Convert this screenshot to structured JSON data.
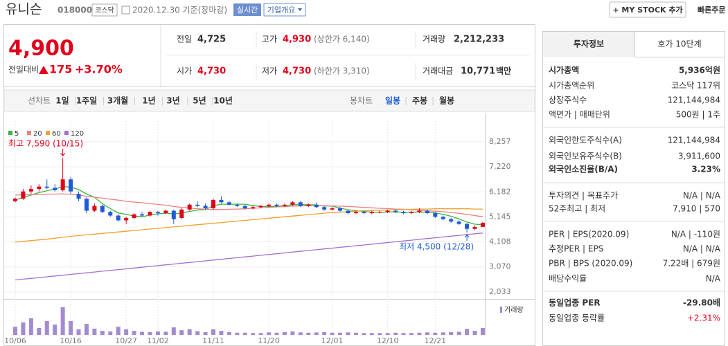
{
  "header": {
    "name": "유니슨",
    "code": "018000",
    "market": "코스닥",
    "date": "2020.12.30 기준(장마감)",
    "realtime": "실시간",
    "company": "기업개요",
    "mystock": "+ MY STOCK 추가",
    "quick_order": "빠른주문"
  },
  "price": {
    "current": "4,900",
    "change_label": "전일대비",
    "change": "175",
    "change_pct": "+3.70%"
  },
  "quote": [
    {
      "label": "전일",
      "value": "4,725"
    },
    {
      "label": "고가",
      "value": "4,930",
      "note": "(상한가 6,140)"
    },
    {
      "label": "거래량",
      "value": "2,212,233"
    },
    {
      "label": "시가",
      "value": "4,730"
    },
    {
      "label": "저가",
      "value": "4,730",
      "note": "(하한가 3,310)"
    },
    {
      "label": "거래대금",
      "value": "10,771",
      "unit": "백만"
    }
  ],
  "periods": {
    "line_label": "선차트",
    "line": [
      "1일",
      "1주일",
      "3개월",
      "1년",
      "3년",
      "5년",
      "10년"
    ],
    "candle_label": "봉차트",
    "candle": [
      "일봉",
      "주봉",
      "월봉"
    ]
  },
  "chart_data": {
    "type": "candlestick",
    "categories": [
      "10/06",
      null,
      null,
      null,
      null,
      null,
      null,
      "10/16",
      null,
      null,
      null,
      null,
      null,
      null,
      "10/27",
      null,
      null,
      null,
      "11/02",
      null,
      null,
      null,
      null,
      null,
      null,
      "11/11",
      null,
      null,
      null,
      null,
      null,
      null,
      "11/20",
      null,
      null,
      null,
      null,
      null,
      null,
      null,
      "12/01",
      null,
      null,
      null,
      null,
      null,
      null,
      "12/10",
      null,
      null,
      null,
      null,
      null,
      "12/21",
      null,
      null,
      null,
      null,
      null,
      null
    ],
    "ohlc": [
      [
        5800,
        5950,
        5750,
        5900
      ],
      [
        5900,
        6300,
        5850,
        6200
      ],
      [
        6200,
        6450,
        6100,
        6300
      ],
      [
        6300,
        6500,
        6200,
        6400
      ],
      [
        6400,
        6700,
        6300,
        6350
      ],
      [
        6350,
        6500,
        6200,
        6250
      ],
      [
        6250,
        7590,
        6200,
        6700
      ],
      [
        6700,
        6800,
        6100,
        6200
      ],
      [
        6100,
        6200,
        5800,
        5900
      ],
      [
        5900,
        5950,
        5300,
        5400
      ],
      [
        5400,
        5700,
        5350,
        5600
      ],
      [
        5600,
        5650,
        5300,
        5350
      ],
      [
        5350,
        5400,
        5150,
        5200
      ],
      [
        5200,
        5250,
        4950,
        5000
      ],
      [
        5000,
        5150,
        4850,
        5100
      ],
      [
        5100,
        5300,
        5050,
        5250
      ],
      [
        5250,
        5350,
        5150,
        5200
      ],
      [
        5200,
        5400,
        5150,
        5350
      ],
      [
        5350,
        5400,
        5200,
        5300
      ],
      [
        5300,
        5450,
        5250,
        5400
      ],
      [
        5400,
        5450,
        4850,
        5050
      ],
      [
        5100,
        5500,
        5050,
        5450
      ],
      [
        5450,
        5700,
        5400,
        5650
      ],
      [
        5650,
        5800,
        5550,
        5600
      ],
      [
        5600,
        5700,
        5450,
        5500
      ],
      [
        5500,
        5900,
        5450,
        5850
      ],
      [
        5850,
        6000,
        5700,
        5750
      ],
      [
        5750,
        5800,
        5600,
        5650
      ],
      [
        5650,
        5700,
        5550,
        5600
      ],
      [
        5600,
        5650,
        5450,
        5500
      ],
      [
        5500,
        5600,
        5450,
        5550
      ],
      [
        5550,
        5650,
        5500,
        5600
      ],
      [
        5600,
        5700,
        5550,
        5650
      ],
      [
        5650,
        5700,
        5550,
        5600
      ],
      [
        5600,
        5700,
        5550,
        5650
      ],
      [
        5650,
        5800,
        5600,
        5750
      ],
      [
        5750,
        5800,
        5550,
        5600
      ],
      [
        5600,
        5700,
        5550,
        5650
      ],
      [
        5650,
        5750,
        5500,
        5550
      ],
      [
        5550,
        5600,
        5400,
        5450
      ],
      [
        5450,
        5550,
        5400,
        5500
      ],
      [
        5500,
        5550,
        5350,
        5400
      ],
      [
        5400,
        5450,
        5250,
        5300
      ],
      [
        5300,
        5400,
        5250,
        5350
      ],
      [
        5350,
        5400,
        5250,
        5300
      ],
      [
        5300,
        5400,
        5250,
        5350
      ],
      [
        5350,
        5400,
        5300,
        5350
      ],
      [
        5350,
        5450,
        5300,
        5400
      ],
      [
        5400,
        5450,
        5300,
        5350
      ],
      [
        5350,
        5400,
        5250,
        5300
      ],
      [
        5300,
        5400,
        5250,
        5350
      ],
      [
        5350,
        5500,
        5300,
        5400
      ],
      [
        5400,
        5450,
        5250,
        5300
      ],
      [
        5300,
        5350,
        5100,
        5150
      ],
      [
        5150,
        5200,
        5000,
        5050
      ],
      [
        5050,
        5100,
        4900,
        4950
      ],
      [
        4950,
        5000,
        4800,
        4850
      ],
      [
        4850,
        4900,
        4500,
        4650
      ],
      [
        4650,
        4800,
        4600,
        4725
      ],
      [
        4730,
        4930,
        4730,
        4900
      ]
    ],
    "up_color": "#e0001b",
    "down_color": "#1e5bd5",
    "series": [
      {
        "name": "5",
        "color": "#3cb43c",
        "values": [
          5850,
          5950,
          6050,
          6150,
          6230,
          6300,
          6400,
          6380,
          6280,
          6090,
          5960,
          5690,
          5490,
          5310,
          5250,
          5180,
          5150,
          5220,
          5270,
          5300,
          5260,
          5310,
          5370,
          5430,
          5450,
          5610,
          5670,
          5670,
          5670,
          5670,
          5610,
          5580,
          5580,
          5580,
          5610,
          5650,
          5650,
          5650,
          5640,
          5600,
          5590,
          5510,
          5440,
          5400,
          5370,
          5340,
          5330,
          5350,
          5350,
          5340,
          5340,
          5350,
          5340,
          5310,
          5250,
          5170,
          5060,
          4930,
          4840,
          4820
        ]
      },
      {
        "name": "20",
        "color": "#ec7f7f",
        "values": [
          6050,
          6060,
          6070,
          6080,
          6090,
          6090,
          6100,
          6080,
          6050,
          6000,
          5960,
          5920,
          5880,
          5840,
          5790,
          5760,
          5730,
          5700,
          5660,
          5630,
          5580,
          5540,
          5510,
          5480,
          5460,
          5450,
          5450,
          5460,
          5470,
          5480,
          5500,
          5520,
          5540,
          5560,
          5570,
          5590,
          5600,
          5610,
          5620,
          5610,
          5600,
          5590,
          5580,
          5560,
          5540,
          5520,
          5500,
          5490,
          5470,
          5460,
          5440,
          5420,
          5400,
          5380,
          5360,
          5330,
          5290,
          5250,
          5200,
          5150
        ]
      },
      {
        "name": "60",
        "color": "#f0a030",
        "values": [
          4100,
          4130,
          4160,
          4190,
          4220,
          4260,
          4300,
          4340,
          4370,
          4400,
          4430,
          4460,
          4490,
          4520,
          4550,
          4580,
          4610,
          4640,
          4670,
          4700,
          4730,
          4760,
          4790,
          4820,
          4850,
          4880,
          4910,
          4940,
          4970,
          5000,
          5030,
          5060,
          5090,
          5120,
          5150,
          5180,
          5210,
          5240,
          5270,
          5300,
          5320,
          5340,
          5360,
          5380,
          5400,
          5410,
          5420,
          5430,
          5440,
          5450,
          5460,
          5470,
          5470,
          5480,
          5480,
          5480,
          5480,
          5480,
          5470,
          5470
        ]
      },
      {
        "name": "120",
        "color": "#a070d0",
        "values": [
          2530,
          2563,
          2596,
          2629,
          2662,
          2695,
          2728,
          2761,
          2794,
          2827,
          2860,
          2893,
          2926,
          2959,
          2992,
          3025,
          3058,
          3091,
          3124,
          3157,
          3190,
          3223,
          3256,
          3289,
          3322,
          3355,
          3388,
          3421,
          3454,
          3487,
          3520,
          3553,
          3586,
          3619,
          3652,
          3685,
          3718,
          3751,
          3784,
          3817,
          3850,
          3883,
          3916,
          3949,
          3982,
          4015,
          4048,
          4081,
          4114,
          4147,
          4180,
          4213,
          4246,
          4279,
          4312,
          4345,
          4378,
          4411,
          4444,
          4477
        ]
      }
    ],
    "ylim": [
      1800,
      8973
    ],
    "yticks": [
      {
        "value": 8257,
        "label": "8,257"
      },
      {
        "value": 7220,
        "label": "7,220"
      },
      {
        "value": 6182,
        "label": "6,182"
      },
      {
        "value": 5145,
        "label": "5,145"
      },
      {
        "value": 4108,
        "label": "4,108"
      },
      {
        "value": 3070,
        "label": "3,070"
      },
      {
        "value": 2033,
        "label": "2,033"
      }
    ],
    "grid": true,
    "annotations": {
      "high": "최고 7,590 (10/15)",
      "low": "최저 4,500 (12/28)"
    },
    "volume": {
      "label": "거래량",
      "color": "#a38bd0",
      "values": [
        2600000,
        4000000,
        5300000,
        2200000,
        4400000,
        3300000,
        8800000,
        4400000,
        1800000,
        3500000,
        2000000,
        1300000,
        1100000,
        2600000,
        1800000,
        1300000,
        1000000,
        900000,
        1100000,
        1000000,
        2400000,
        1500000,
        1800000,
        1200000,
        900000,
        1800000,
        1300000,
        900000,
        700000,
        700000,
        600000,
        600000,
        800000,
        700000,
        900000,
        1100000,
        800000,
        700000,
        800000,
        900000,
        700000,
        700000,
        800000,
        700000,
        600000,
        600000,
        600000,
        600000,
        700000,
        600000,
        600000,
        700000,
        800000,
        700000,
        800000,
        900000,
        1000000,
        1900000,
        1300000,
        2212233
      ]
    }
  },
  "info": {
    "tabs": [
      "투자정보",
      "호가 10단계"
    ],
    "rows": [
      {
        "label": "시가총액",
        "value": "5,936억원"
      },
      {
        "label": "시가총액순위",
        "value": "코스닥 117위"
      },
      {
        "label": "상장주식수",
        "value": "121,144,984"
      },
      {
        "label": "액면가 | 매매단위",
        "value": "500원 | 1주"
      },
      {
        "label": "외국인한도주식수(A)",
        "value": "121,144,984"
      },
      {
        "label": "외국인보유주식수(B)",
        "value": "3,911,600"
      },
      {
        "label": "외국인소진율(B/A)",
        "value": "3.23%"
      },
      {
        "label": "투자의견 | 목표주가",
        "value": "N/A | N/A"
      },
      {
        "label": "52주최고 | 최저",
        "value": "7,910 | 570"
      },
      {
        "label": "PER | EPS(2020.09)",
        "value": "N/A | -110원"
      },
      {
        "label": "추정PER | EPS",
        "value": "N/A | N/A"
      },
      {
        "label": "PBR | BPS (2020.09)",
        "value": "7.22배 | 679원"
      },
      {
        "label": "배당수익률",
        "value": "N/A"
      },
      {
        "label": "동일업종 PER",
        "value": "-29.80배"
      },
      {
        "label": "동일업종 등락률",
        "value": "+2.31%"
      }
    ]
  }
}
